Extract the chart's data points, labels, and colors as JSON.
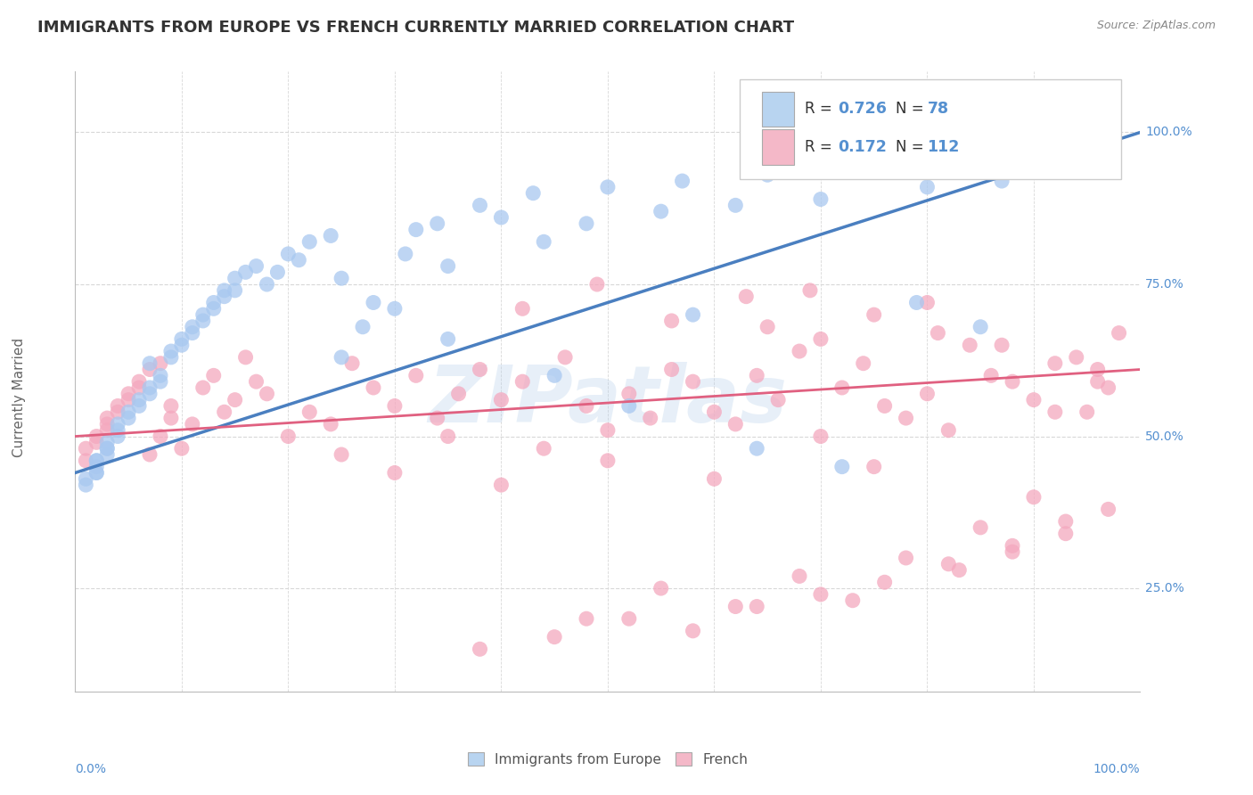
{
  "title": "IMMIGRANTS FROM EUROPE VS FRENCH CURRENTLY MARRIED CORRELATION CHART",
  "source_text": "Source: ZipAtlas.com",
  "ylabel": "Currently Married",
  "x_label_bottom_left": "0.0%",
  "x_label_bottom_right": "100.0%",
  "y_tick_labels": [
    "25.0%",
    "50.0%",
    "75.0%",
    "100.0%"
  ],
  "y_tick_positions": [
    0.25,
    0.5,
    0.75,
    1.0
  ],
  "bottom_legend_blue": "Immigrants from Europe",
  "bottom_legend_pink": "French",
  "blue_color": "#a8c8f0",
  "pink_color": "#f4a8be",
  "blue_line_color": "#4a7fc0",
  "pink_line_color": "#e06080",
  "blue_R": 0.726,
  "pink_R": 0.172,
  "blue_N": 78,
  "pink_N": 112,
  "watermark": "ZIPatlas",
  "watermark_color": "#b0cce8",
  "background_color": "#ffffff",
  "grid_color": "#d8d8d8",
  "title_color": "#333333",
  "title_fontsize": 13,
  "axis_label_color": "#5590d0",
  "legend_box_blue_fill": "#b8d4f0",
  "legend_box_pink_fill": "#f4b8c8",
  "blue_trend_start": 0.44,
  "blue_trend_end": 1.0,
  "pink_trend_start": 0.5,
  "pink_trend_end": 0.61,
  "ylim_min": 0.08,
  "ylim_max": 1.1,
  "xlim_min": 0.0,
  "xlim_max": 1.0,
  "blue_x": [
    0.02,
    0.02,
    0.01,
    0.03,
    0.01,
    0.02,
    0.03,
    0.02,
    0.04,
    0.02,
    0.03,
    0.04,
    0.03,
    0.05,
    0.04,
    0.06,
    0.05,
    0.07,
    0.06,
    0.08,
    0.07,
    0.07,
    0.09,
    0.08,
    0.1,
    0.09,
    0.11,
    0.1,
    0.12,
    0.11,
    0.13,
    0.12,
    0.14,
    0.13,
    0.15,
    0.14,
    0.16,
    0.15,
    0.18,
    0.17,
    0.2,
    0.19,
    0.22,
    0.21,
    0.25,
    0.24,
    0.28,
    0.27,
    0.32,
    0.31,
    0.35,
    0.34,
    0.38,
    0.4,
    0.44,
    0.43,
    0.48,
    0.5,
    0.55,
    0.57,
    0.62,
    0.65,
    0.7,
    0.75,
    0.8,
    0.83,
    0.87,
    0.9,
    0.25,
    0.3,
    0.35,
    0.45,
    0.52,
    0.58,
    0.64,
    0.72,
    0.79,
    0.85
  ],
  "blue_y": [
    0.44,
    0.46,
    0.43,
    0.47,
    0.42,
    0.45,
    0.48,
    0.44,
    0.5,
    0.46,
    0.49,
    0.52,
    0.48,
    0.54,
    0.51,
    0.56,
    0.53,
    0.58,
    0.55,
    0.6,
    0.57,
    0.62,
    0.64,
    0.59,
    0.66,
    0.63,
    0.68,
    0.65,
    0.7,
    0.67,
    0.72,
    0.69,
    0.74,
    0.71,
    0.76,
    0.73,
    0.77,
    0.74,
    0.75,
    0.78,
    0.8,
    0.77,
    0.82,
    0.79,
    0.76,
    0.83,
    0.72,
    0.68,
    0.84,
    0.8,
    0.78,
    0.85,
    0.88,
    0.86,
    0.82,
    0.9,
    0.85,
    0.91,
    0.87,
    0.92,
    0.88,
    0.93,
    0.89,
    0.94,
    0.91,
    0.95,
    0.92,
    0.96,
    0.63,
    0.71,
    0.66,
    0.6,
    0.55,
    0.7,
    0.48,
    0.45,
    0.72,
    0.68
  ],
  "pink_x": [
    0.01,
    0.02,
    0.01,
    0.03,
    0.02,
    0.03,
    0.04,
    0.03,
    0.05,
    0.04,
    0.06,
    0.05,
    0.07,
    0.06,
    0.08,
    0.07,
    0.09,
    0.08,
    0.1,
    0.09,
    0.11,
    0.12,
    0.13,
    0.14,
    0.15,
    0.16,
    0.17,
    0.18,
    0.2,
    0.22,
    0.24,
    0.26,
    0.28,
    0.3,
    0.32,
    0.34,
    0.36,
    0.38,
    0.4,
    0.42,
    0.44,
    0.46,
    0.48,
    0.5,
    0.52,
    0.54,
    0.56,
    0.58,
    0.6,
    0.62,
    0.64,
    0.66,
    0.68,
    0.7,
    0.72,
    0.74,
    0.76,
    0.78,
    0.8,
    0.82,
    0.84,
    0.86,
    0.88,
    0.9,
    0.92,
    0.94,
    0.96,
    0.98,
    0.25,
    0.3,
    0.35,
    0.4,
    0.5,
    0.6,
    0.65,
    0.7,
    0.75,
    0.8,
    0.85,
    0.9,
    0.95,
    0.48,
    0.55,
    0.62,
    0.68,
    0.73,
    0.78,
    0.83,
    0.88,
    0.93,
    0.97,
    0.38,
    0.45,
    0.52,
    0.58,
    0.64,
    0.7,
    0.76,
    0.82,
    0.88,
    0.93,
    0.97,
    0.42,
    0.49,
    0.56,
    0.63,
    0.69,
    0.75,
    0.81,
    0.87,
    0.92,
    0.96
  ],
  "pink_y": [
    0.48,
    0.5,
    0.46,
    0.52,
    0.49,
    0.53,
    0.55,
    0.51,
    0.57,
    0.54,
    0.59,
    0.56,
    0.61,
    0.58,
    0.5,
    0.47,
    0.53,
    0.62,
    0.48,
    0.55,
    0.52,
    0.58,
    0.6,
    0.54,
    0.56,
    0.63,
    0.59,
    0.57,
    0.5,
    0.54,
    0.52,
    0.62,
    0.58,
    0.55,
    0.6,
    0.53,
    0.57,
    0.61,
    0.56,
    0.59,
    0.48,
    0.63,
    0.55,
    0.51,
    0.57,
    0.53,
    0.61,
    0.59,
    0.54,
    0.52,
    0.6,
    0.56,
    0.64,
    0.5,
    0.58,
    0.62,
    0.55,
    0.53,
    0.57,
    0.51,
    0.65,
    0.6,
    0.59,
    0.56,
    0.54,
    0.63,
    0.61,
    0.67,
    0.47,
    0.44,
    0.5,
    0.42,
    0.46,
    0.43,
    0.68,
    0.66,
    0.45,
    0.72,
    0.35,
    0.4,
    0.54,
    0.2,
    0.25,
    0.22,
    0.27,
    0.23,
    0.3,
    0.28,
    0.32,
    0.34,
    0.38,
    0.15,
    0.17,
    0.2,
    0.18,
    0.22,
    0.24,
    0.26,
    0.29,
    0.31,
    0.36,
    0.58,
    0.71,
    0.75,
    0.69,
    0.73,
    0.74,
    0.7,
    0.67,
    0.65,
    0.62,
    0.59
  ]
}
